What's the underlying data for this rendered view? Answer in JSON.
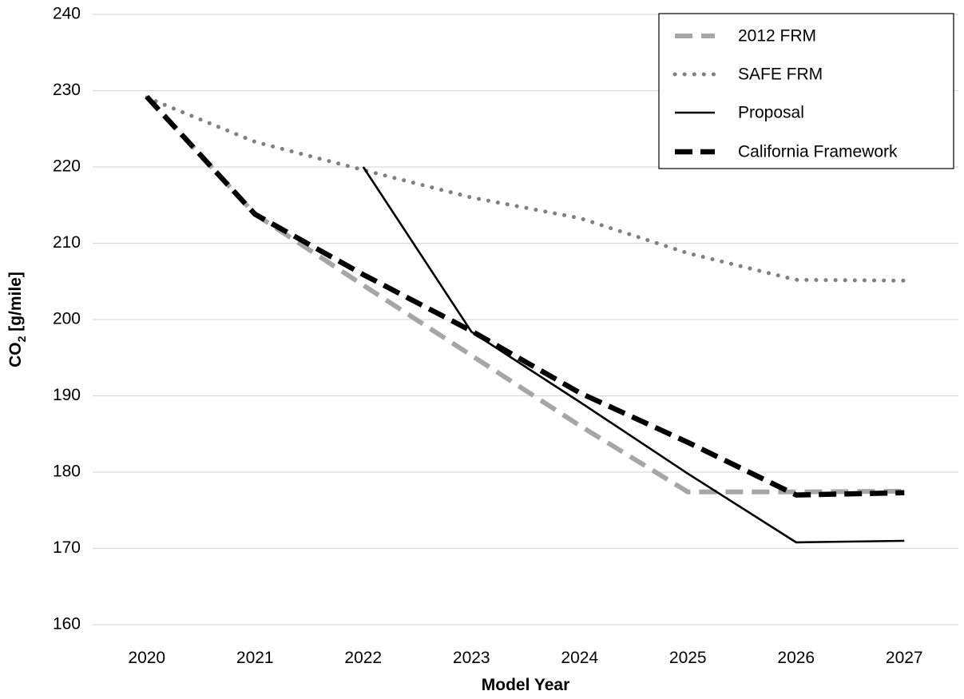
{
  "chart_data": {
    "type": "line",
    "title": "",
    "xlabel": "Model Year",
    "ylabel": {
      "base": "CO",
      "sub": "2",
      "rest": " [g/mile]"
    },
    "x": [
      2020,
      2021,
      2022,
      2023,
      2024,
      2025,
      2026,
      2027
    ],
    "x_tick_labels": [
      "2020",
      "2021",
      "2022",
      "2023",
      "2024",
      "2025",
      "2026",
      "2027"
    ],
    "ylim": [
      160,
      240
    ],
    "y_ticks": [
      160,
      170,
      180,
      190,
      200,
      210,
      220,
      230,
      240
    ],
    "y_tick_labels": [
      "160",
      "170",
      "180",
      "190",
      "200",
      "210",
      "220",
      "230",
      "240"
    ],
    "grid": "horizontal",
    "legend_position": "top-right",
    "series": [
      {
        "name": "2012 FRM",
        "x": [
          2020,
          2021,
          2022,
          2023,
          2024,
          2025,
          2026,
          2027
        ],
        "values": [
          229.2,
          213.8,
          204.5,
          195.3,
          186.1,
          177.4,
          177.4,
          177.5
        ],
        "color": "#a6a6a6",
        "style": "dashed"
      },
      {
        "name": "SAFE FRM",
        "x": [
          2020,
          2021,
          2022,
          2023,
          2024,
          2025,
          2026,
          2027
        ],
        "values": [
          229.1,
          223.3,
          219.6,
          216.0,
          213.3,
          208.7,
          205.2,
          205.1
        ],
        "color": "#808080",
        "style": "dotted"
      },
      {
        "name": "Proposal",
        "x": [
          2022,
          2023,
          2024,
          2025,
          2026,
          2027
        ],
        "values": [
          220.0,
          198.4,
          189.2,
          179.8,
          170.8,
          171.0
        ],
        "color": "#000000",
        "style": "solid"
      },
      {
        "name": "California Framework",
        "x": [
          2020,
          2021,
          2022,
          2023,
          2024,
          2025,
          2026,
          2027
        ],
        "values": [
          229.2,
          213.8,
          205.9,
          198.5,
          190.4,
          183.9,
          177.0,
          177.3
        ],
        "color": "#000000",
        "style": "thick-dashed"
      }
    ]
  }
}
